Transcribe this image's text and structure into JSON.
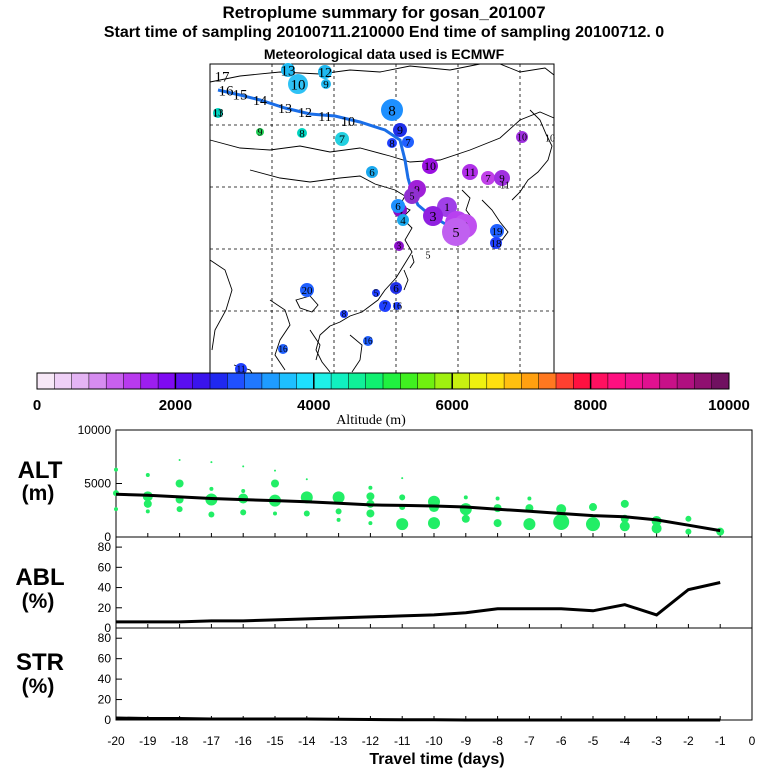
{
  "header": {
    "title": "Retroplume summary for gosan_201007",
    "subtitle": "Start time of sampling 20100711.210000     End time of sampling 20100712.     0",
    "met_line": "Meteorological data used is ECMWF"
  },
  "map": {
    "overlays": [
      {
        "t": "17",
        "c": "#33c8ff"
      },
      {
        "t": "13",
        "c": "#1fb8f0"
      },
      {
        "t": "12",
        "c": "#1fb8f0"
      },
      {
        "t": "10",
        "c": "#2ec2f5"
      },
      {
        "t": "9",
        "c": "#1fb8f0"
      },
      {
        "t": "16",
        "c": "#1aa8ee"
      },
      {
        "t": "15",
        "c": "#1aa8ee"
      },
      {
        "t": "14",
        "c": "#1aa8ee"
      },
      {
        "t": "13",
        "c": "#1aa8ee"
      },
      {
        "t": "12",
        "c": "#1aa8ee"
      },
      {
        "t": "11",
        "c": "#1aa8ee"
      },
      {
        "t": "10",
        "c": "#1aa8ee"
      },
      {
        "t": "11",
        "c": "#00d4c0"
      },
      {
        "t": "9",
        "c": "#22cc55"
      },
      {
        "t": "8",
        "c": "#00d4c0"
      },
      {
        "t": "7",
        "c": "#22d0e0"
      },
      {
        "t": "8",
        "c": "#1e90ff"
      },
      {
        "t": "9",
        "c": "#2030e8"
      },
      {
        "t": "8",
        "c": "#2040ff"
      },
      {
        "t": "7",
        "c": "#2060ff"
      },
      {
        "t": "10",
        "c": "#9a10e0"
      },
      {
        "t": "6",
        "c": "#1aa8ee"
      },
      {
        "t": "11",
        "c": "#b030e8"
      },
      {
        "t": "7",
        "c": "#c040e8"
      },
      {
        "t": "9",
        "c": "#a020d8"
      },
      {
        "t": "4",
        "c": "#8a10c8"
      },
      {
        "t": "5",
        "c": "#9030d0"
      },
      {
        "t": "6",
        "c": "#1e90ff"
      },
      {
        "t": "4",
        "c": "#1aa8ee"
      },
      {
        "t": "1",
        "c": "#a040e8"
      },
      {
        "t": "3",
        "c": "#9020e0"
      },
      {
        "t": "6",
        "c": "#b840f0"
      },
      {
        "t": "2",
        "c": "#c050f0"
      },
      {
        "t": "5",
        "c": "#c060f0"
      },
      {
        "t": "19",
        "c": "#2060ff"
      },
      {
        "t": "18",
        "c": "#2040ff"
      },
      {
        "t": "9",
        "c": "#a030e0"
      },
      {
        "t": "10",
        "c": "#a030e0"
      },
      {
        "t": "3",
        "c": "#8a10c8"
      },
      {
        "t": "20",
        "c": "#2060ff"
      },
      {
        "t": "5",
        "c": "#2040ff"
      },
      {
        "t": "6",
        "c": "#2030e8"
      },
      {
        "t": "16",
        "c": "#2040ff"
      },
      {
        "t": "7",
        "c": "#2040ff"
      },
      {
        "t": "8",
        "c": "#2040ff"
      },
      {
        "t": "16",
        "c": "#2060ff"
      },
      {
        "t": "16",
        "c": "#2060ff"
      },
      {
        "t": "11",
        "c": "#2040ff"
      },
      {
        "t": "13",
        "c": "#2040ff"
      },
      {
        "t": "11",
        "c": "#2040ff"
      },
      {
        "t": "10",
        "c": "#2040ff"
      },
      {
        "t": "5",
        "c": "#c040e8"
      }
    ]
  },
  "colorbar": {
    "colors": [
      "#f7e8f7",
      "#efd0f7",
      "#e4b4f4",
      "#d68cf0",
      "#c860ee",
      "#b83aee",
      "#9d1ef0",
      "#7f0af2",
      "#5a0ef0",
      "#3a14ec",
      "#2028f0",
      "#2050ff",
      "#2078ff",
      "#1e9cff",
      "#1ec0ff",
      "#1ee0ff",
      "#1ef0e8",
      "#10f0c0",
      "#10f098",
      "#10f070",
      "#20f040",
      "#40f020",
      "#70f010",
      "#a0f010",
      "#c8f010",
      "#eef010",
      "#ffe010",
      "#ffc010",
      "#ffa010",
      "#ff7820",
      "#ff4030",
      "#ff1040",
      "#ff1060",
      "#ff1080",
      "#f01090",
      "#e01090",
      "#c81088",
      "#b01080",
      "#901070",
      "#701060"
    ],
    "tick_labels": [
      "0",
      "2000",
      "4000",
      "6000",
      "8000",
      "10000"
    ],
    "label": "Altitude (m)"
  },
  "panels": {
    "alt": {
      "label_top": "ALT",
      "label_bot": "(m)"
    },
    "abl": {
      "label_top": "ABL",
      "label_bot": "(%)"
    },
    "str": {
      "label_top": "STR",
      "label_bot": "(%)"
    }
  },
  "x_axis_title": "Travel time (days)",
  "chart_data": [
    {
      "type": "line",
      "title": "ALT",
      "ylabel": "(m)",
      "xlabel": "Travel time (days)",
      "xlim": [
        -20,
        0
      ],
      "ylim": [
        0,
        10000
      ],
      "yticks": [
        "0",
        "5000",
        "10000"
      ],
      "xticks": [
        "-20",
        "-19",
        "-18",
        "-17",
        "-16",
        "-15",
        "-14",
        "-13",
        "-12",
        "-11",
        "-10",
        "-9",
        "-8",
        "-7",
        "-6",
        "-5",
        "-4",
        "-3",
        "-2",
        "-1",
        "0"
      ],
      "series": [
        {
          "name": "mean altitude",
          "x": [
            -20,
            -19,
            -18,
            -17,
            -16,
            -15,
            -14,
            -13,
            -12,
            -11,
            -10,
            -9,
            -8,
            -7,
            -6,
            -5,
            -4,
            -3,
            -2,
            -1
          ],
          "values": [
            4000,
            3900,
            3750,
            3600,
            3500,
            3400,
            3300,
            3150,
            3000,
            2950,
            2900,
            2800,
            2600,
            2400,
            2200,
            2000,
            1900,
            1600,
            1100,
            600
          ]
        }
      ],
      "scatter": [
        {
          "x": -20,
          "y": 6300,
          "r": 2
        },
        {
          "x": -20,
          "y": 4100,
          "r": 3
        },
        {
          "x": -20,
          "y": 2600,
          "r": 2
        },
        {
          "x": -19,
          "y": 5800,
          "r": 2
        },
        {
          "x": -19,
          "y": 3800,
          "r": 5
        },
        {
          "x": -19,
          "y": 3100,
          "r": 4
        },
        {
          "x": -19,
          "y": 2400,
          "r": 2
        },
        {
          "x": -18,
          "y": 7200,
          "r": 1
        },
        {
          "x": -18,
          "y": 5000,
          "r": 4
        },
        {
          "x": -18,
          "y": 3500,
          "r": 4
        },
        {
          "x": -18,
          "y": 2600,
          "r": 3
        },
        {
          "x": -17,
          "y": 7000,
          "r": 1
        },
        {
          "x": -17,
          "y": 4500,
          "r": 2
        },
        {
          "x": -17,
          "y": 3500,
          "r": 6
        },
        {
          "x": -17,
          "y": 2100,
          "r": 3
        },
        {
          "x": -16,
          "y": 6600,
          "r": 1
        },
        {
          "x": -16,
          "y": 4300,
          "r": 2
        },
        {
          "x": -16,
          "y": 3600,
          "r": 5
        },
        {
          "x": -16,
          "y": 2300,
          "r": 3
        },
        {
          "x": -15,
          "y": 6200,
          "r": 1
        },
        {
          "x": -15,
          "y": 5000,
          "r": 4
        },
        {
          "x": -15,
          "y": 3400,
          "r": 6
        },
        {
          "x": -15,
          "y": 2200,
          "r": 2
        },
        {
          "x": -14,
          "y": 5400,
          "r": 1
        },
        {
          "x": -14,
          "y": 3700,
          "r": 6
        },
        {
          "x": -14,
          "y": 2200,
          "r": 3
        },
        {
          "x": -13,
          "y": 3700,
          "r": 6
        },
        {
          "x": -13,
          "y": 2400,
          "r": 3
        },
        {
          "x": -13,
          "y": 1600,
          "r": 2
        },
        {
          "x": -12,
          "y": 4600,
          "r": 2
        },
        {
          "x": -12,
          "y": 3800,
          "r": 4
        },
        {
          "x": -12,
          "y": 3100,
          "r": 4
        },
        {
          "x": -12,
          "y": 2200,
          "r": 4
        },
        {
          "x": -12,
          "y": 1300,
          "r": 2
        },
        {
          "x": -11,
          "y": 5500,
          "r": 1
        },
        {
          "x": -11,
          "y": 3700,
          "r": 3
        },
        {
          "x": -11,
          "y": 2800,
          "r": 3
        },
        {
          "x": -11,
          "y": 1200,
          "r": 6
        },
        {
          "x": -10,
          "y": 3300,
          "r": 6
        },
        {
          "x": -10,
          "y": 2800,
          "r": 5
        },
        {
          "x": -10,
          "y": 1300,
          "r": 6
        },
        {
          "x": -9,
          "y": 3700,
          "r": 2
        },
        {
          "x": -9,
          "y": 2600,
          "r": 6
        },
        {
          "x": -9,
          "y": 1700,
          "r": 4
        },
        {
          "x": -8,
          "y": 3600,
          "r": 2
        },
        {
          "x": -8,
          "y": 2700,
          "r": 4
        },
        {
          "x": -8,
          "y": 1300,
          "r": 4
        },
        {
          "x": -7,
          "y": 3600,
          "r": 2
        },
        {
          "x": -7,
          "y": 2700,
          "r": 4
        },
        {
          "x": -7,
          "y": 1200,
          "r": 6
        },
        {
          "x": -6,
          "y": 2600,
          "r": 5
        },
        {
          "x": -6,
          "y": 1400,
          "r": 8
        },
        {
          "x": -5,
          "y": 2800,
          "r": 4
        },
        {
          "x": -5,
          "y": 1200,
          "r": 7
        },
        {
          "x": -4,
          "y": 3100,
          "r": 4
        },
        {
          "x": -4,
          "y": 1700,
          "r": 4
        },
        {
          "x": -4,
          "y": 1000,
          "r": 5
        },
        {
          "x": -3,
          "y": 1500,
          "r": 5
        },
        {
          "x": -3,
          "y": 800,
          "r": 5
        },
        {
          "x": -2,
          "y": 1700,
          "r": 3
        },
        {
          "x": -2,
          "y": 500,
          "r": 3
        },
        {
          "x": -1,
          "y": 500,
          "r": 4
        }
      ]
    },
    {
      "type": "line",
      "title": "ABL",
      "ylabel": "(%)",
      "xlabel": "Travel time (days)",
      "xlim": [
        -20,
        0
      ],
      "ylim": [
        0,
        90
      ],
      "yticks": [
        "0",
        "20",
        "40",
        "60",
        "80"
      ],
      "series": [
        {
          "name": "ABL fraction",
          "x": [
            -20,
            -19,
            -18,
            -17,
            -16,
            -15,
            -14,
            -13,
            -12,
            -11,
            -10,
            -9,
            -8,
            -7,
            -6,
            -5,
            -4,
            -3,
            -2,
            -1
          ],
          "values": [
            6,
            6,
            6,
            7,
            7,
            8,
            9,
            10,
            11,
            12,
            13,
            15,
            19,
            19,
            19,
            17,
            23,
            13,
            38,
            45
          ]
        }
      ]
    },
    {
      "type": "line",
      "title": "STR",
      "ylabel": "(%)",
      "xlabel": "Travel time (days)",
      "xlim": [
        -20,
        0
      ],
      "ylim": [
        0,
        90
      ],
      "yticks": [
        "0",
        "20",
        "40",
        "60",
        "80"
      ],
      "series": [
        {
          "name": "stratospheric fraction",
          "x": [
            -20,
            -19,
            -18,
            -17,
            -16,
            -15,
            -14,
            -13,
            -12,
            -11,
            -10,
            -9,
            -8,
            -7,
            -6,
            -5,
            -4,
            -3,
            -2,
            -1
          ],
          "values": [
            2,
            1.5,
            1.5,
            1,
            1,
            1,
            1,
            0.8,
            0.5,
            0.3,
            0.2,
            0,
            0,
            0,
            0,
            0,
            0,
            0,
            0,
            0
          ]
        }
      ]
    }
  ]
}
